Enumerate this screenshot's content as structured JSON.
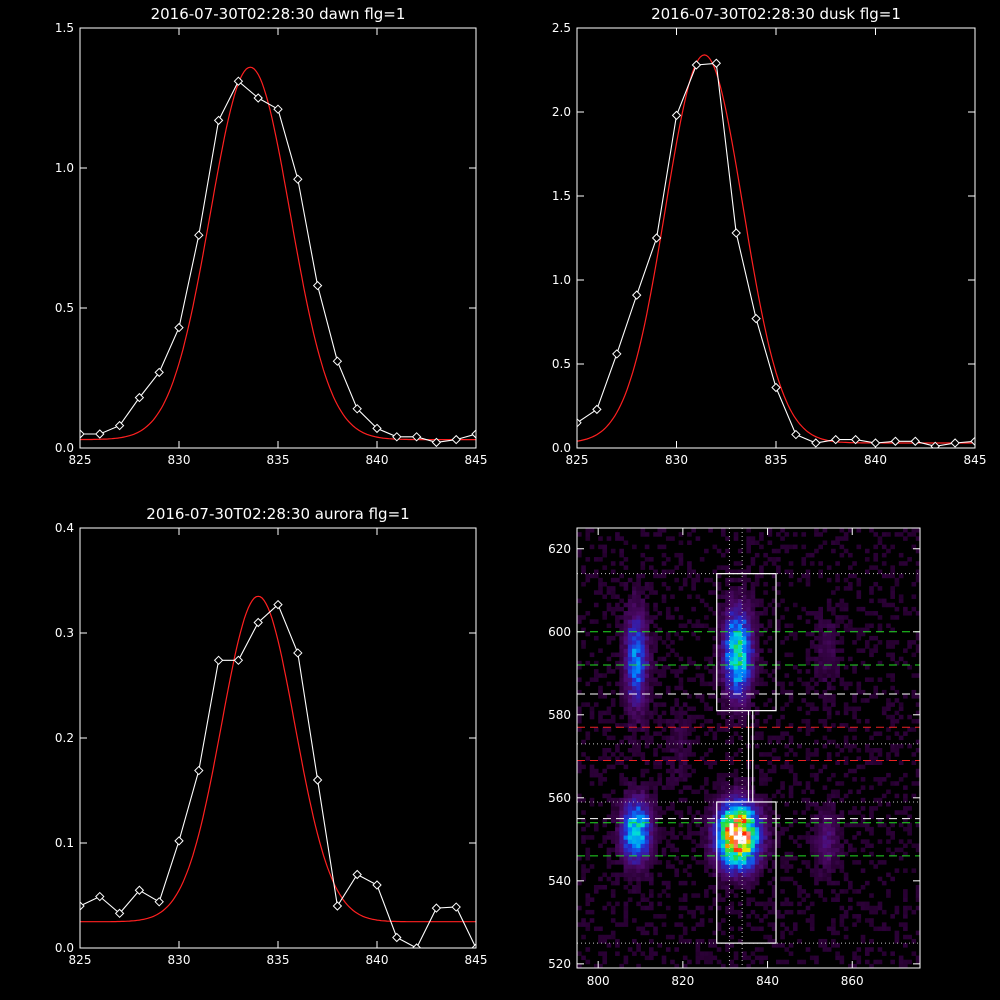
{
  "colors": {
    "background": "#000000",
    "axis": "#ffffff",
    "data_line": "#ffffff",
    "fit_line": "#ff2020",
    "box": "#ffffff",
    "green_dash": "#22dd22",
    "red_dash": "#ee2222",
    "white_dash": "#ffffff"
  },
  "chart_data": [
    {
      "type": "line",
      "title": "2016-07-30T02:28:30 dawn flg=1",
      "xlim": [
        825,
        845
      ],
      "ylim": [
        0,
        1.5
      ],
      "xticks": [
        "825",
        "830",
        "835",
        "840",
        "845"
      ],
      "xtick_values": [
        825,
        830,
        835,
        840,
        845
      ],
      "yticks": [
        "0.0",
        "0.5",
        "1.0",
        "1.5"
      ],
      "ytick_values": [
        0,
        0.5,
        1.0,
        1.5
      ],
      "series": [
        {
          "style": "data",
          "x": [
            825,
            826,
            827,
            828,
            829,
            830,
            831,
            832,
            833,
            834,
            835,
            836,
            837,
            838,
            839,
            840,
            841,
            842,
            843,
            844,
            845
          ],
          "values": [
            0.05,
            0.05,
            0.08,
            0.18,
            0.27,
            0.43,
            0.76,
            1.17,
            1.31,
            1.25,
            1.21,
            0.96,
            0.58,
            0.31,
            0.14,
            0.07,
            0.04,
            0.04,
            0.02,
            0.03,
            0.05
          ]
        },
        {
          "style": "fit",
          "fit": {
            "amplitude": 1.33,
            "center": 833.6,
            "sigma": 2.02,
            "offset": 0.03
          }
        }
      ]
    },
    {
      "type": "line",
      "title": "2016-07-30T02:28:30 dusk flg=1",
      "xlim": [
        825,
        845
      ],
      "ylim": [
        0,
        2.5
      ],
      "xticks": [
        "825",
        "830",
        "835",
        "840",
        "845"
      ],
      "xtick_values": [
        825,
        830,
        835,
        840,
        845
      ],
      "yticks": [
        "0.0",
        "0.5",
        "1.0",
        "1.5",
        "2.0",
        "2.5"
      ],
      "ytick_values": [
        0,
        0.5,
        1.0,
        1.5,
        2.0,
        2.5
      ],
      "series": [
        {
          "style": "data",
          "x": [
            825,
            826,
            827,
            828,
            829,
            830,
            831,
            832,
            833,
            834,
            835,
            836,
            837,
            838,
            839,
            840,
            841,
            842,
            843,
            844,
            845
          ],
          "values": [
            0.15,
            0.23,
            0.56,
            0.91,
            1.25,
            1.98,
            2.28,
            2.29,
            1.28,
            0.77,
            0.36,
            0.08,
            0.03,
            0.05,
            0.05,
            0.03,
            0.04,
            0.04,
            0.01,
            0.03,
            0.04
          ]
        },
        {
          "style": "fit",
          "fit": {
            "amplitude": 2.31,
            "center": 831.4,
            "sigma": 1.95,
            "offset": 0.03
          }
        }
      ]
    },
    {
      "type": "line",
      "title": "2016-07-30T02:28:30 aurora flg=1",
      "xlim": [
        825,
        845
      ],
      "ylim": [
        0,
        0.4
      ],
      "xticks": [
        "825",
        "830",
        "835",
        "840",
        "845"
      ],
      "xtick_values": [
        825,
        830,
        835,
        840,
        845
      ],
      "yticks": [
        "0.0",
        "0.1",
        "0.2",
        "0.3",
        "0.4"
      ],
      "ytick_values": [
        0,
        0.1,
        0.2,
        0.3,
        0.4
      ],
      "series": [
        {
          "style": "data",
          "x": [
            825,
            826,
            827,
            828,
            829,
            830,
            831,
            832,
            833,
            834,
            835,
            836,
            837,
            838,
            839,
            840,
            841,
            842,
            843,
            844,
            845
          ],
          "values": [
            0.04,
            0.049,
            0.033,
            0.055,
            0.044,
            0.102,
            0.169,
            0.274,
            0.274,
            0.31,
            0.327,
            0.281,
            0.16,
            0.04,
            0.07,
            0.06,
            0.01,
            0.0,
            0.038,
            0.039,
            0.0
          ]
        },
        {
          "style": "fit",
          "fit": {
            "amplitude": 0.31,
            "center": 834.0,
            "sigma": 1.85,
            "offset": 0.025
          }
        }
      ]
    },
    {
      "type": "heatmap",
      "title": "",
      "xlim": [
        795,
        876
      ],
      "ylim": [
        519,
        625
      ],
      "xticks": [
        "800",
        "820",
        "840",
        "860"
      ],
      "xtick_values": [
        800,
        820,
        840,
        860
      ],
      "yticks": [
        "520",
        "540",
        "560",
        "580",
        "600",
        "620"
      ],
      "ytick_values": [
        520,
        540,
        560,
        580,
        600,
        620
      ],
      "blobs": [
        {
          "x": 833,
          "y": 551,
          "sx": 3.2,
          "sy": 5,
          "amp": 1.0
        },
        {
          "x": 833,
          "y": 595,
          "sx": 2.2,
          "sy": 7,
          "amp": 0.55
        },
        {
          "x": 809,
          "y": 552,
          "sx": 2.4,
          "sy": 5,
          "amp": 0.5
        },
        {
          "x": 809,
          "y": 593,
          "sx": 1.8,
          "sy": 8,
          "amp": 0.35
        },
        {
          "x": 854,
          "y": 550,
          "sx": 2,
          "sy": 5,
          "amp": 0.13
        },
        {
          "x": 854,
          "y": 595,
          "sx": 2,
          "sy": 6,
          "amp": 0.07
        },
        {
          "x": 819,
          "y": 573,
          "sx": 2,
          "sy": 7,
          "amp": 0.05
        }
      ],
      "boxes": [
        {
          "x0": 828,
          "x1": 842,
          "y0": 525,
          "y1": 559
        },
        {
          "x0": 828,
          "x1": 842,
          "y0": 581,
          "y1": 614
        }
      ],
      "connector_x": [
        835.5,
        836.5
      ],
      "vertical_dotted_x": [
        831,
        834
      ],
      "dotted_h": [
        525,
        559,
        573,
        614
      ],
      "green_dashed": [
        546,
        554,
        592,
        600
      ],
      "white_dashed": [
        555,
        585
      ],
      "red_dashed": [
        569,
        577
      ]
    }
  ]
}
